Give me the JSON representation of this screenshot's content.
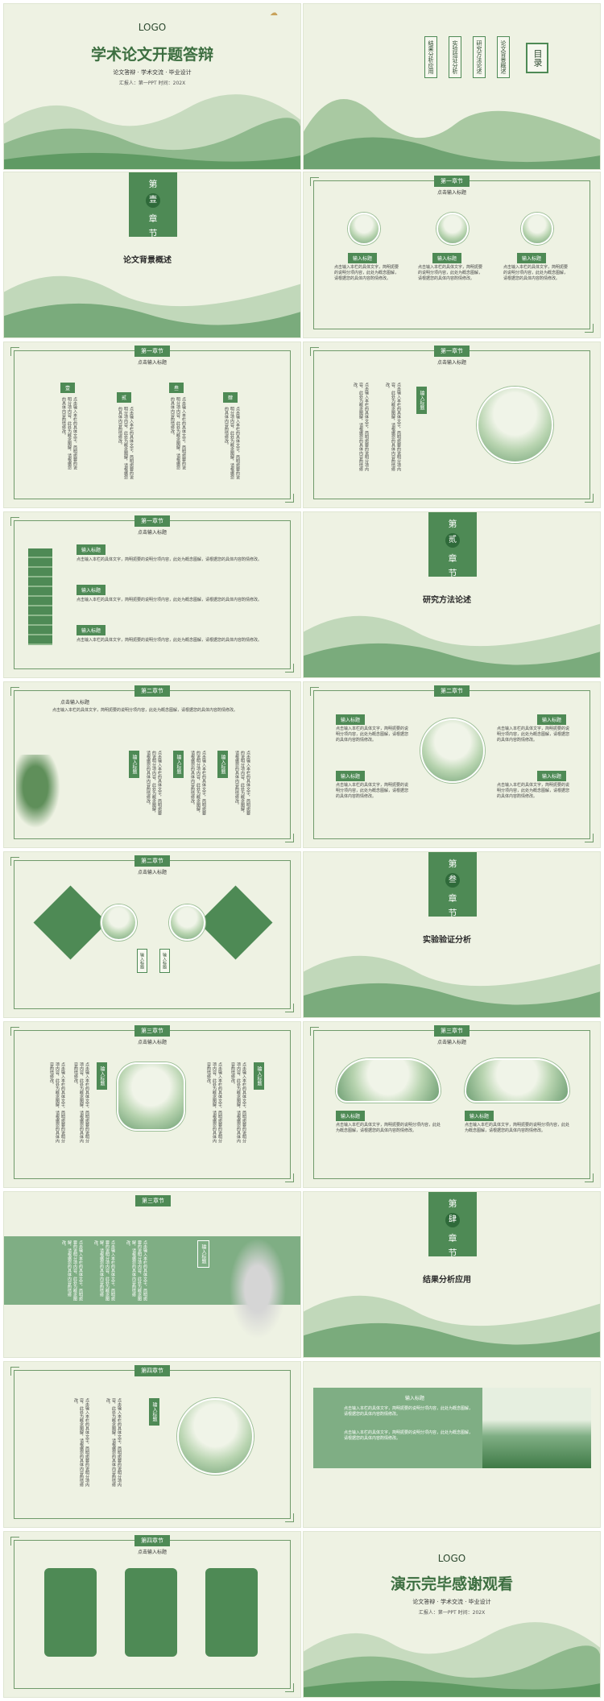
{
  "s1": {
    "logo": "LOGO",
    "title": "学术论文开题答辩",
    "subtitle": "论文答辩 · 学术交流 · 毕业设计",
    "meta": "汇报人：第一PPT  时间：202X"
  },
  "s2": {
    "toc_title": "目录",
    "items": [
      "论文背景概述",
      "研究方法论述",
      "实验验证分析",
      "结果分析应用"
    ]
  },
  "s3": {
    "chapter_a": "第",
    "chapter_num": "壹",
    "chapter_b": "章",
    "chapter_c": "节",
    "section": "论文背景概述"
  },
  "common": {
    "chap1": "第一章节",
    "chap2": "第二章节",
    "chap3": "第三章节",
    "chap4": "第四章节",
    "hint": "点击输入标题",
    "label": "输入标题",
    "body": "点击输入本栏的具体文字，简明扼要的说明分项内容，此处为概念图解，请根据您的具体内容酌情修改。"
  },
  "s5": {
    "chars": [
      "壹",
      "贰",
      "叁",
      "肆"
    ]
  },
  "s8": {
    "chapter_a": "第",
    "chapter_num": "贰",
    "chapter_b": "章",
    "chapter_c": "节",
    "section": "研究方法论述"
  },
  "s12": {
    "chapter_a": "第",
    "chapter_num": "叁",
    "chapter_b": "章",
    "chapter_c": "节",
    "section": "实验验证分析"
  },
  "s16": {
    "chapter_a": "第",
    "chapter_num": "肆",
    "chapter_b": "章",
    "chapter_c": "节",
    "section": "结果分析应用"
  },
  "s20": {
    "logo": "LOGO",
    "title": "演示完毕感谢观看",
    "subtitle": "论文答辩 · 学术交流 · 毕业设计",
    "meta": "汇报人：第一PPT  时间：202X"
  },
  "colors": {
    "green": "#4e8a55",
    "light": "#eef2e3",
    "gold": "#c9a35c"
  }
}
